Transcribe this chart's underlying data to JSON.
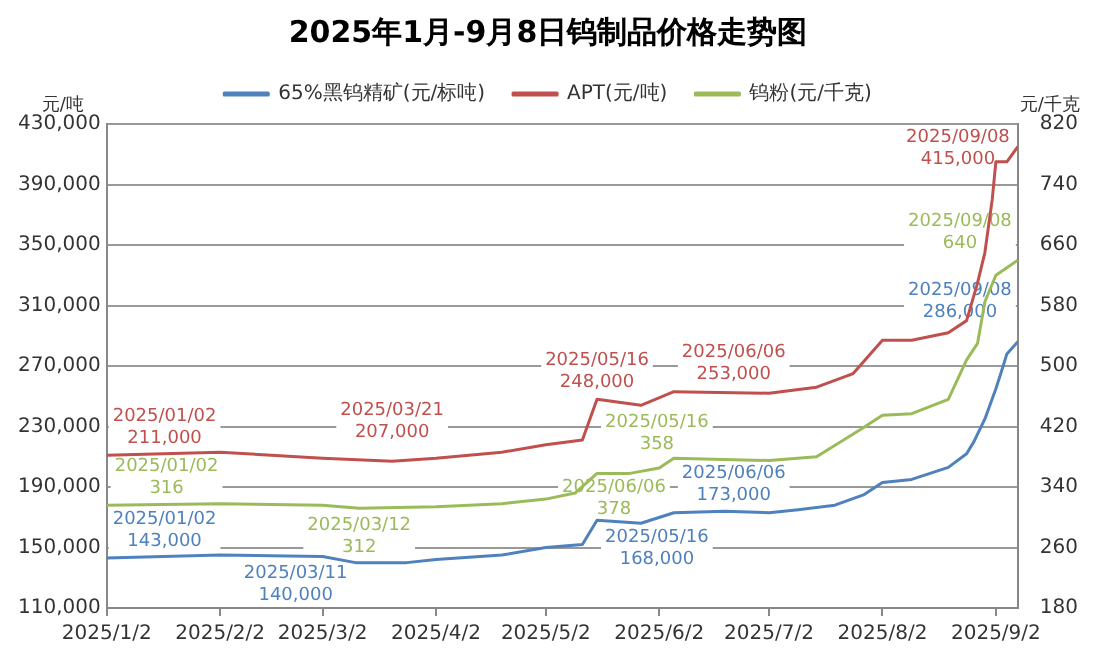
{
  "chart_data": {
    "type": "line",
    "title": "2025年1月-9月8日钨制品价格走势图",
    "ylabel": "元/吨",
    "y2label": "元/千克",
    "xlim": [
      "2025-01-02",
      "2025-09-08"
    ],
    "xticks": [
      {
        "value": "2025-01-02",
        "label": "2025/1/2"
      },
      {
        "value": "2025-02-02",
        "label": "2025/2/2"
      },
      {
        "value": "2025-03-02",
        "label": "2025/3/2"
      },
      {
        "value": "2025-04-02",
        "label": "2025/4/2"
      },
      {
        "value": "2025-05-02",
        "label": "2025/5/2"
      },
      {
        "value": "2025-06-02",
        "label": "2025/6/2"
      },
      {
        "value": "2025-07-02",
        "label": "2025/7/2"
      },
      {
        "value": "2025-08-02",
        "label": "2025/8/2"
      },
      {
        "value": "2025-09-02",
        "label": "2025/9/2"
      }
    ],
    "ylim": [
      110000,
      430000
    ],
    "yticks": [
      {
        "value": 110000,
        "label": "110,000"
      },
      {
        "value": 150000,
        "label": "150,000"
      },
      {
        "value": 190000,
        "label": "190,000"
      },
      {
        "value": 230000,
        "label": "230,000"
      },
      {
        "value": 270000,
        "label": "270,000"
      },
      {
        "value": 310000,
        "label": "310,000"
      },
      {
        "value": 350000,
        "label": "350,000"
      },
      {
        "value": 390000,
        "label": "390,000"
      },
      {
        "value": 430000,
        "label": "430,000"
      }
    ],
    "y2lim": [
      180,
      820
    ],
    "y2ticks": [
      180,
      260,
      340,
      420,
      500,
      580,
      660,
      740,
      820
    ],
    "grid": "y",
    "legend": "top",
    "marker": "none",
    "line_style": "solid",
    "series": [
      {
        "name": "65%黑钨精矿(元/标吨)",
        "color": "#4f81bd",
        "x": [
          "2025-01-02",
          "2025-02-02",
          "2025-03-02",
          "2025-03-11",
          "2025-03-25",
          "2025-04-02",
          "2025-04-20",
          "2025-05-02",
          "2025-05-12",
          "2025-05-16",
          "2025-05-28",
          "2025-06-06",
          "2025-06-20",
          "2025-07-02",
          "2025-07-10",
          "2025-07-20",
          "2025-07-28",
          "2025-08-02",
          "2025-08-10",
          "2025-08-20",
          "2025-08-25",
          "2025-08-27",
          "2025-08-30",
          "2025-09-02",
          "2025-09-04",
          "2025-09-05",
          "2025-09-08"
        ],
        "values": [
          143000,
          145000,
          144000,
          140000,
          140000,
          142000,
          145000,
          150000,
          152000,
          168000,
          166000,
          173000,
          174000,
          173000,
          175000,
          178000,
          185000,
          193000,
          195000,
          203000,
          212000,
          220000,
          235000,
          255000,
          270000,
          278000,
          286000
        ],
        "value_labels": [
          "2025/01/02\n143,000",
          null,
          null,
          "2025/03/11\n140,000",
          null,
          null,
          null,
          null,
          null,
          "2025/05/16\n168,000",
          null,
          "2025/06/06\n173,000",
          null,
          null,
          null,
          null,
          null,
          null,
          null,
          null,
          null,
          null,
          null,
          null,
          null,
          null,
          "2025/09/08\n286,000"
        ]
      },
      {
        "name": "APT(元/吨)",
        "color": "#c0504d",
        "x": [
          "2025-01-02",
          "2025-02-02",
          "2025-03-02",
          "2025-03-21",
          "2025-04-02",
          "2025-04-20",
          "2025-05-02",
          "2025-05-12",
          "2025-05-16",
          "2025-05-28",
          "2025-06-06",
          "2025-07-02",
          "2025-07-15",
          "2025-07-25",
          "2025-08-02",
          "2025-08-10",
          "2025-08-20",
          "2025-08-25",
          "2025-08-28",
          "2025-08-30",
          "2025-09-01",
          "2025-09-02",
          "2025-09-05",
          "2025-09-08"
        ],
        "values": [
          211000,
          213000,
          209000,
          207000,
          209000,
          213000,
          218000,
          221000,
          248000,
          244000,
          253000,
          252000,
          256000,
          265000,
          287000,
          287000,
          292000,
          300000,
          325000,
          345000,
          380000,
          405000,
          405000,
          415000
        ],
        "value_labels": [
          "2025/01/02\n211,000",
          null,
          null,
          "2025/03/21\n207,000",
          null,
          null,
          null,
          null,
          "2025/05/16\n248,000",
          null,
          "2025/06/06\n253,000",
          null,
          null,
          null,
          null,
          null,
          null,
          null,
          null,
          null,
          null,
          null,
          null,
          "2025/09/08\n415,000"
        ]
      },
      {
        "name": "钨粉(元/千克)",
        "color": "#9bbb59",
        "axis": "y2",
        "x": [
          "2025-01-02",
          "2025-02-02",
          "2025-03-02",
          "2025-03-12",
          "2025-04-02",
          "2025-04-20",
          "2025-05-02",
          "2025-05-10",
          "2025-05-16",
          "2025-05-25",
          "2025-06-02",
          "2025-06-06",
          "2025-07-02",
          "2025-07-15",
          "2025-07-27",
          "2025-08-02",
          "2025-08-10",
          "2025-08-20",
          "2025-08-25",
          "2025-08-28",
          "2025-08-30",
          "2025-09-02",
          "2025-09-05",
          "2025-09-08"
        ],
        "values": [
          316,
          318,
          316,
          312,
          314,
          318,
          324,
          332,
          358,
          358,
          365,
          378,
          375,
          380,
          416,
          435,
          437,
          456,
          508,
          530,
          585,
          620,
          630,
          640
        ],
        "value_labels": [
          "2025/01/02\n316",
          null,
          null,
          "2025/03/12\n312",
          null,
          null,
          null,
          null,
          "2025/05/16\n358",
          null,
          null,
          "2025/06/06\n378",
          null,
          null,
          null,
          null,
          null,
          null,
          null,
          null,
          null,
          null,
          null,
          "2025/09/08\n640"
        ]
      }
    ]
  }
}
